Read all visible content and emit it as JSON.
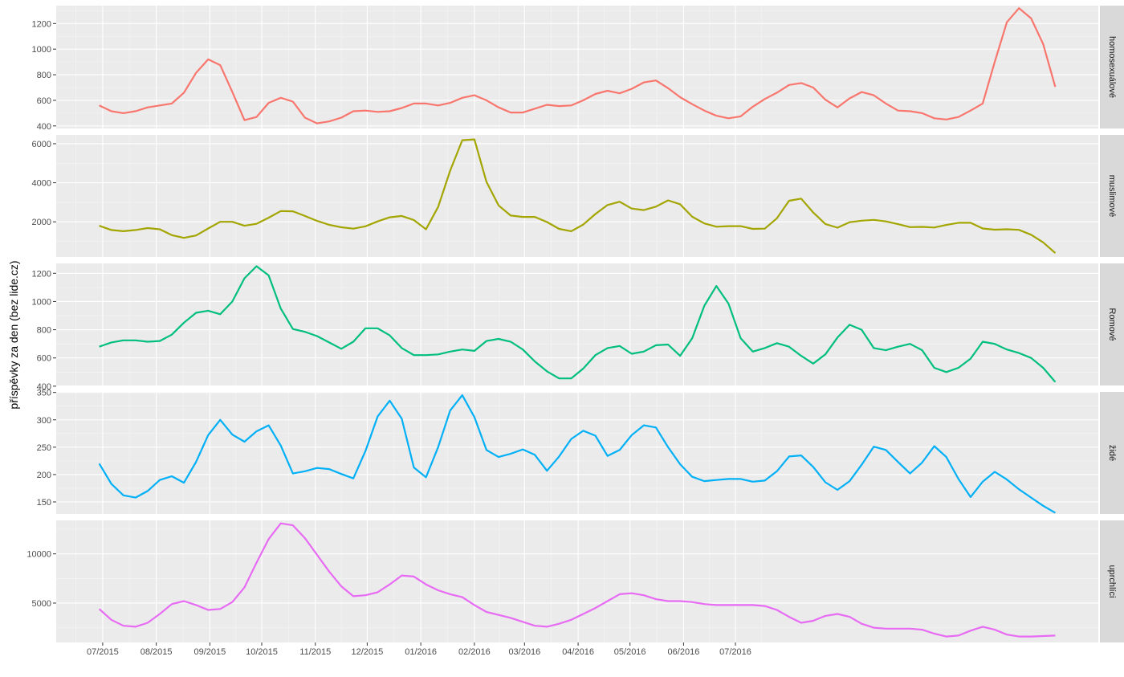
{
  "chart_data": {
    "type": "line",
    "ylabel": "příspěvky za den (bez lide.cz)",
    "x_ticks": [
      "07/2015",
      "08/2015",
      "09/2015",
      "10/2015",
      "11/2015",
      "12/2015",
      "01/2016",
      "02/2016",
      "03/2016",
      "04/2016",
      "05/2016",
      "06/2016",
      "07/2016"
    ],
    "x_start": "2015-06-29",
    "x_step_days": 7,
    "grid": true,
    "legend": "none",
    "panels": [
      {
        "name": "homosexuálové",
        "color": "#F8766D",
        "ylim": [
          380,
          1340
        ],
        "y_ticks": [
          400,
          600,
          800,
          1000,
          1200
        ],
        "values": [
          560,
          515,
          500,
          515,
          545,
          560,
          575,
          660,
          815,
          920,
          875,
          665,
          445,
          470,
          580,
          620,
          590,
          465,
          420,
          435,
          465,
          515,
          520,
          510,
          515,
          540,
          575,
          575,
          560,
          580,
          620,
          640,
          600,
          545,
          505,
          505,
          535,
          565,
          555,
          560,
          600,
          650,
          675,
          655,
          690,
          740,
          755,
          695,
          625,
          570,
          520,
          480,
          460,
          475,
          550,
          610,
          660,
          720,
          735,
          700,
          605,
          545,
          615,
          665,
          640,
          575,
          520,
          515,
          500,
          460,
          450,
          470,
          520,
          575,
          900,
          1210,
          1320,
          1240,
          1040,
          705
        ]
      },
      {
        "name": "muslimové",
        "color": "#A3A500",
        "ylim": [
          200,
          6450
        ],
        "y_ticks": [
          2000,
          4000,
          6000
        ],
        "values": [
          1800,
          1580,
          1520,
          1580,
          1680,
          1620,
          1320,
          1180,
          1300,
          1660,
          2000,
          2000,
          1800,
          1900,
          2210,
          2550,
          2540,
          2300,
          2050,
          1850,
          1720,
          1650,
          1770,
          2020,
          2230,
          2300,
          2090,
          1620,
          2760,
          4620,
          6180,
          6220,
          4050,
          2840,
          2320,
          2250,
          2250,
          1990,
          1640,
          1520,
          1860,
          2400,
          2860,
          3030,
          2680,
          2600,
          2780,
          3100,
          2900,
          2260,
          1920,
          1750,
          1780,
          1780,
          1640,
          1650,
          2180,
          3080,
          3190,
          2480,
          1890,
          1700,
          1980,
          2060,
          2100,
          2020,
          1880,
          1730,
          1740,
          1710,
          1840,
          1950,
          1950,
          1660,
          1600,
          1620,
          1590,
          1340,
          950,
          400
        ]
      },
      {
        "name": "Romové",
        "color": "#00BF7D",
        "ylim": [
          405,
          1270
        ],
        "y_ticks": [
          400,
          600,
          800,
          1000,
          1200
        ],
        "values": [
          680,
          710,
          725,
          725,
          715,
          720,
          765,
          850,
          920,
          935,
          910,
          1000,
          1165,
          1250,
          1185,
          950,
          805,
          785,
          755,
          710,
          665,
          715,
          810,
          810,
          760,
          670,
          620,
          620,
          625,
          645,
          660,
          650,
          720,
          735,
          715,
          660,
          575,
          505,
          455,
          455,
          525,
          620,
          670,
          685,
          630,
          645,
          690,
          695,
          615,
          740,
          970,
          1110,
          985,
          740,
          645,
          670,
          705,
          680,
          615,
          560,
          625,
          745,
          835,
          800,
          670,
          655,
          680,
          700,
          655,
          530,
          500,
          530,
          595,
          715,
          700,
          660,
          635,
          600,
          530,
          430
        ]
      },
      {
        "name": "židé",
        "color": "#00B0F6",
        "ylim": [
          128,
          351
        ],
        "y_ticks": [
          150,
          200,
          250,
          300,
          350
        ],
        "values": [
          220,
          183,
          162,
          158,
          170,
          190,
          197,
          185,
          223,
          272,
          300,
          273,
          260,
          279,
          290,
          253,
          202,
          206,
          212,
          210,
          201,
          193,
          243,
          306,
          335,
          302,
          213,
          195,
          250,
          317,
          345,
          305,
          245,
          232,
          238,
          246,
          236,
          207,
          233,
          265,
          280,
          271,
          234,
          245,
          272,
          290,
          286,
          250,
          219,
          196,
          188,
          190,
          192,
          192,
          187,
          189,
          206,
          233,
          235,
          214,
          186,
          172,
          188,
          218,
          251,
          245,
          223,
          202,
          222,
          252,
          232,
          192,
          159,
          187,
          205,
          191,
          173,
          158,
          143,
          130
        ]
      },
      {
        "name": "uprchlíci",
        "color": "#E76BF3",
        "ylim": [
          1000,
          13400
        ],
        "y_ticks": [
          5000,
          10000
        ],
        "values": [
          4400,
          3300,
          2700,
          2600,
          3000,
          3900,
          4900,
          5200,
          4800,
          4300,
          4400,
          5100,
          6600,
          9100,
          11500,
          13100,
          12900,
          11600,
          9900,
          8200,
          6700,
          5700,
          5800,
          6100,
          6900,
          7800,
          7700,
          6900,
          6300,
          5900,
          5600,
          4800,
          4100,
          3800,
          3500,
          3100,
          2700,
          2600,
          2900,
          3300,
          3900,
          4500,
          5200,
          5900,
          6000,
          5800,
          5400,
          5200,
          5200,
          5100,
          4900,
          4800,
          4800,
          4800,
          4800,
          4700,
          4300,
          3600,
          3000,
          3200,
          3700,
          3900,
          3600,
          2900,
          2500,
          2400,
          2400,
          2400,
          2300,
          1900,
          1600,
          1700,
          2200,
          2600,
          2300,
          1800,
          1600,
          1600,
          1650,
          1700
        ]
      }
    ]
  }
}
